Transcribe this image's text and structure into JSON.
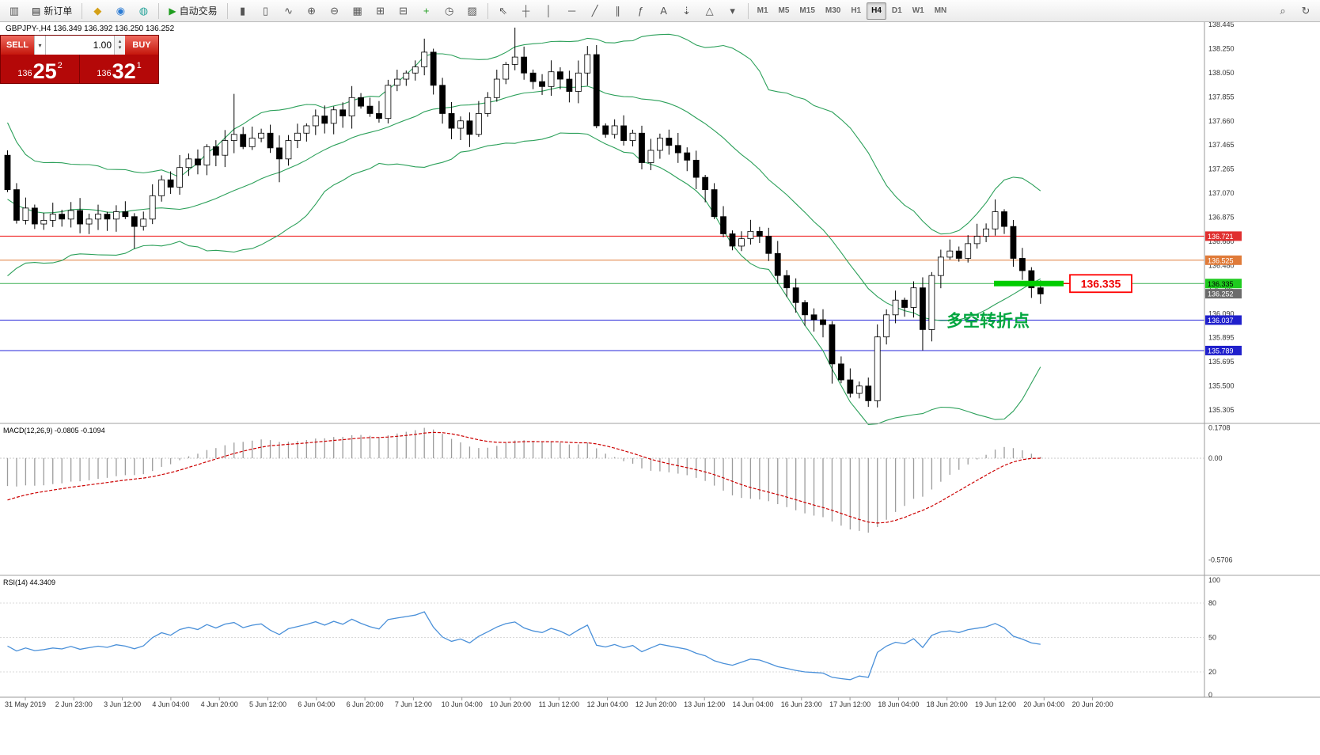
{
  "toolbar": {
    "chart_window_icon": "▥",
    "new_order_icon": "▤",
    "new_order_label": "新订单",
    "auto_trading_icon": "▶",
    "auto_trading_label": "自动交易",
    "quick_icons": [
      {
        "name": "gold-icon",
        "glyph": "◆",
        "color": "#d4a017"
      },
      {
        "name": "community-icon",
        "glyph": "◉",
        "color": "#2b7bd4"
      },
      {
        "name": "info-icon",
        "glyph": "◍",
        "color": "#27a39a"
      }
    ],
    "chart_icons": [
      {
        "name": "bar-chart-icon",
        "glyph": "▮"
      },
      {
        "name": "candlestick-chart-icon",
        "glyph": "▯"
      },
      {
        "name": "line-chart-icon",
        "glyph": "∿"
      },
      {
        "name": "zoom-in-icon",
        "glyph": "⊕"
      },
      {
        "name": "zoom-out-icon",
        "glyph": "⊖"
      },
      {
        "name": "tile-windows-icon",
        "glyph": "▦"
      },
      {
        "name": "new-chart-icon",
        "glyph": "⊞"
      },
      {
        "name": "profiles-icon",
        "glyph": "⊟"
      },
      {
        "name": "indicators-icon",
        "glyph": "+",
        "color": "#1f9d1f"
      },
      {
        "name": "periods-icon",
        "glyph": "◷"
      },
      {
        "name": "templates-icon",
        "glyph": "▨"
      }
    ],
    "drawing_icons": [
      {
        "name": "cursor-icon",
        "glyph": "⇖"
      },
      {
        "name": "crosshair-icon",
        "glyph": "┼"
      },
      {
        "name": "vertical-line-icon",
        "glyph": "│"
      },
      {
        "name": "horizontal-line-icon",
        "glyph": "─"
      },
      {
        "name": "trendline-icon",
        "glyph": "╱"
      },
      {
        "name": "channel-icon",
        "glyph": "∥"
      },
      {
        "name": "fibonacci-icon",
        "glyph": "ƒ"
      },
      {
        "name": "text-icon",
        "glyph": "A"
      },
      {
        "name": "arrow-tools-icon",
        "glyph": "⇣"
      },
      {
        "name": "shapes-icon",
        "glyph": "△"
      },
      {
        "name": "more-tools-icon",
        "glyph": "▾"
      }
    ],
    "timeframes": [
      "M1",
      "M5",
      "M15",
      "M30",
      "H1",
      "H4",
      "D1",
      "W1",
      "MN"
    ],
    "active_timeframe": "H4",
    "right_icons": [
      {
        "name": "search-icon",
        "glyph": "⌕"
      },
      {
        "name": "refresh-icon",
        "glyph": "↻"
      }
    ]
  },
  "chart": {
    "info_line": "GBPJPY-,H4  136.349 136.392 136.250 136.252",
    "symbol": "GBPJPY-",
    "period": "H4",
    "ohlc": {
      "open": "136.349",
      "high": "136.392",
      "low": "136.250",
      "close": "136.252"
    }
  },
  "trade_panel": {
    "sell_label": "SELL",
    "buy_label": "BUY",
    "volume": "1.00",
    "caret_icon": "▾",
    "stepper_up_icon": "▴",
    "stepper_down_icon": "▾",
    "sell_price": {
      "big_figure": "136",
      "pips": "25",
      "pipette": "2"
    },
    "buy_price": {
      "big_figure": "136",
      "pips": "32",
      "pipette": "1"
    }
  },
  "price_axis": {
    "labels": [
      "138.445",
      "138.250",
      "138.050",
      "137.855",
      "137.660",
      "137.465",
      "137.265",
      "137.070",
      "136.875",
      "136.680",
      "136.480",
      "136.285",
      "136.090",
      "135.895",
      "135.695",
      "135.500",
      "135.305"
    ]
  },
  "time_axis": {
    "labels": [
      "31 May 2019",
      "2 Jun 23:00",
      "3 Jun 12:00",
      "4 Jun 04:00",
      "4 Jun 20:00",
      "5 Jun 12:00",
      "6 Jun 04:00",
      "6 Jun 20:00",
      "7 Jun 12:00",
      "10 Jun 04:00",
      "10 Jun 20:00",
      "11 Jun 12:00",
      "12 Jun 04:00",
      "12 Jun 20:00",
      "13 Jun 12:00",
      "14 Jun 04:00",
      "16 Jun 23:00",
      "17 Jun 12:00",
      "18 Jun 04:00",
      "18 Jun 20:00",
      "19 Jun 12:00",
      "20 Jun 04:00",
      "20 Jun 20:00"
    ]
  },
  "hlines": [
    {
      "price": 136.721,
      "label": "136.721",
      "color": "#ee1111",
      "badge_bg": "#e03030",
      "badge_fg": "#ffffff"
    },
    {
      "price": 136.525,
      "label": "136.525",
      "color": "#e07b39",
      "badge_bg": "#e07b39",
      "badge_fg": "#ffffff"
    },
    {
      "price": 136.335,
      "label": "136.335",
      "color": "#3cb054",
      "badge_bg": "#1ecb1e",
      "badge_fg": "#000000"
    },
    {
      "price": 136.037,
      "label": "136.037",
      "color": "#2626d8",
      "badge_bg": "#2020cc",
      "badge_fg": "#ffffff"
    },
    {
      "price": 135.789,
      "label": "135.789",
      "color": "#2626d8",
      "badge_bg": "#2020cc",
      "badge_fg": "#ffffff"
    }
  ],
  "current_price": {
    "value": 136.252,
    "label": "136.252",
    "badge_bg": "#6b6b6b",
    "badge_fg": "#ffffff"
  },
  "annotations": {
    "turning_point": "多空转折点",
    "turning_point_color": "#00a63e",
    "price_box_label": "136.335",
    "price_box_color": "#ee0000",
    "highlight_color": "#00cc00"
  },
  "macd_panel": {
    "label": "MACD(12,26,9) -0.0805 -0.1094",
    "axis_labels": [
      "0.1708",
      "0.00",
      "-0.5706"
    ],
    "axis_values": [
      0.1708,
      0,
      -0.5706
    ],
    "histogram_color": "#9c9c9c",
    "signal_color": "#cc0000"
  },
  "rsi_panel": {
    "label": "RSI(14) 44.3409",
    "axis_labels": [
      "100",
      "80",
      "50",
      "20",
      "0"
    ],
    "axis_values": [
      100,
      80,
      50,
      20,
      0
    ],
    "levels": [
      80,
      50,
      20
    ],
    "line_color": "#4a90d9"
  },
  "chart_data": {
    "type": "candlestick",
    "symbol": "GBPJPY",
    "period": "H4",
    "ylim": [
      135.305,
      138.445
    ],
    "bollinger": {
      "period": 20,
      "deviation": 2,
      "color": "#2ca05a"
    },
    "pre_closes": [
      138.6,
      138.45,
      138.3,
      138.1,
      137.95,
      137.8,
      137.7,
      137.55,
      137.45,
      137.35,
      137.6,
      137.8,
      137.55,
      137.3,
      137.05,
      136.85,
      136.7,
      136.6,
      136.75,
      136.9,
      137.05,
      137.15,
      136.95,
      136.75,
      136.6,
      136.7,
      136.9,
      137.1,
      137.25,
      137.38
    ],
    "closes": [
      137.1,
      136.85,
      136.95,
      136.82,
      136.85,
      136.9,
      136.86,
      136.93,
      136.82,
      136.86,
      136.9,
      136.86,
      136.92,
      136.88,
      136.8,
      136.86,
      137.05,
      137.18,
      137.12,
      137.28,
      137.35,
      137.3,
      137.45,
      137.38,
      137.5,
      137.55,
      137.45,
      137.52,
      137.56,
      137.44,
      137.35,
      137.5,
      137.56,
      137.62,
      137.7,
      137.64,
      137.75,
      137.7,
      137.85,
      137.78,
      137.72,
      137.68,
      137.95,
      138.0,
      138.05,
      138.1,
      138.22,
      137.95,
      137.72,
      137.6,
      137.66,
      137.55,
      137.72,
      137.85,
      138.0,
      138.12,
      138.18,
      138.05,
      137.98,
      137.94,
      138.06,
      138.0,
      137.9,
      138.05,
      138.2,
      137.62,
      137.55,
      137.62,
      137.5,
      137.56,
      137.32,
      137.42,
      137.52,
      137.46,
      137.4,
      137.34,
      137.2,
      137.1,
      136.88,
      136.74,
      136.64,
      136.7,
      136.76,
      136.72,
      136.58,
      136.4,
      136.3,
      136.18,
      136.08,
      136.04,
      136.0,
      135.68,
      135.55,
      135.44,
      135.5,
      135.38,
      135.9,
      136.08,
      136.2,
      136.14,
      136.3,
      135.96,
      136.4,
      136.55,
      136.6,
      136.54,
      136.66,
      136.72,
      136.78,
      136.92,
      136.8,
      136.54,
      136.44,
      136.3,
      136.25
    ],
    "wick_overrides": {
      "0": {
        "h": 137.42
      },
      "14": {
        "l": 136.62
      },
      "25": {
        "h": 137.88
      },
      "30": {
        "l": 137.16
      },
      "46": {
        "h": 138.33
      },
      "56": {
        "h": 138.42
      },
      "64": {
        "h": 138.27
      },
      "91": {
        "l": 135.52
      },
      "95": {
        "l": 135.33
      },
      "101": {
        "l": 135.79
      },
      "109": {
        "h": 137.02
      },
      "114": {
        "l": 136.17
      }
    }
  }
}
